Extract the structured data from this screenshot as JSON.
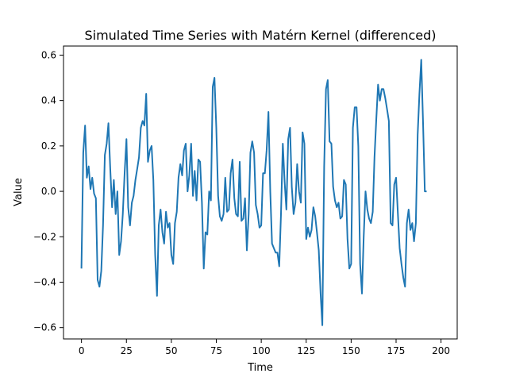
{
  "chart_data": {
    "type": "line",
    "title": "Simulated Time Series with Matérn Kernel (differenced)",
    "xlabel": "Time",
    "ylabel": "Value",
    "xlim": [
      -10,
      209
    ],
    "ylim": [
      -0.65,
      0.64
    ],
    "xticks": [
      0,
      25,
      50,
      75,
      100,
      125,
      150,
      175,
      200
    ],
    "yticks": [
      -0.6,
      -0.4,
      -0.2,
      0.0,
      0.2,
      0.4,
      0.6
    ],
    "ytick_labels": [
      "−0.6",
      "−0.4",
      "−0.2",
      "0.0",
      "0.2",
      "0.4",
      "0.6"
    ],
    "grid": false,
    "series": [
      {
        "color": "#1f77b4",
        "y": [
          -0.34,
          0.17,
          0.29,
          0.06,
          0.11,
          0.01,
          0.06,
          -0.01,
          -0.03,
          -0.39,
          -0.42,
          -0.35,
          -0.15,
          0.16,
          0.21,
          0.3,
          0.1,
          -0.07,
          0.05,
          -0.1,
          0.0,
          -0.28,
          -0.22,
          -0.1,
          0.08,
          0.23,
          -0.07,
          -0.15,
          -0.05,
          -0.02,
          0.05,
          0.1,
          0.15,
          0.28,
          0.31,
          0.29,
          0.43,
          0.13,
          0.18,
          0.2,
          0.05,
          -0.28,
          -0.46,
          -0.15,
          -0.08,
          -0.18,
          -0.23,
          -0.09,
          -0.16,
          -0.14,
          -0.28,
          -0.32,
          -0.14,
          -0.09,
          0.06,
          0.12,
          0.07,
          0.18,
          0.21,
          0.0,
          0.07,
          0.21,
          -0.02,
          0.09,
          -0.04,
          0.14,
          0.13,
          -0.05,
          -0.34,
          -0.18,
          -0.19,
          0.0,
          -0.04,
          0.46,
          0.5,
          0.28,
          -0.02,
          -0.11,
          -0.13,
          -0.1,
          0.06,
          -0.09,
          -0.08,
          0.08,
          0.14,
          -0.03,
          -0.1,
          -0.11,
          0.13,
          -0.13,
          -0.12,
          -0.03,
          -0.26,
          -0.1,
          0.17,
          0.22,
          0.17,
          -0.06,
          -0.1,
          -0.16,
          -0.15,
          0.08,
          0.08,
          0.18,
          0.35,
          0.0,
          -0.23,
          -0.25,
          -0.27,
          -0.27,
          -0.33,
          -0.1,
          0.21,
          0.04,
          -0.08,
          0.23,
          0.28,
          0.02,
          -0.1,
          -0.05,
          0.12,
          0.0,
          -0.05,
          0.26,
          0.21,
          -0.21,
          -0.16,
          -0.2,
          -0.17,
          -0.07,
          -0.11,
          -0.18,
          -0.26,
          -0.45,
          -0.59,
          0.11,
          0.45,
          0.49,
          0.22,
          0.21,
          0.02,
          -0.04,
          -0.07,
          -0.05,
          -0.12,
          -0.11,
          0.05,
          0.03,
          -0.21,
          -0.34,
          -0.32,
          0.28,
          0.37,
          0.37,
          0.2,
          -0.32,
          -0.45,
          -0.2,
          0.0,
          -0.08,
          -0.12,
          -0.14,
          -0.09,
          0.15,
          0.32,
          0.47,
          0.4,
          0.45,
          0.45,
          0.41,
          0.36,
          0.31,
          -0.14,
          -0.15,
          0.03,
          0.06,
          -0.1,
          -0.25,
          -0.32,
          -0.38,
          -0.42,
          -0.14,
          -0.08,
          -0.17,
          -0.14,
          -0.22,
          -0.14,
          0.25,
          0.43,
          0.58,
          0.3,
          0.0,
          0.0
        ]
      }
    ]
  }
}
